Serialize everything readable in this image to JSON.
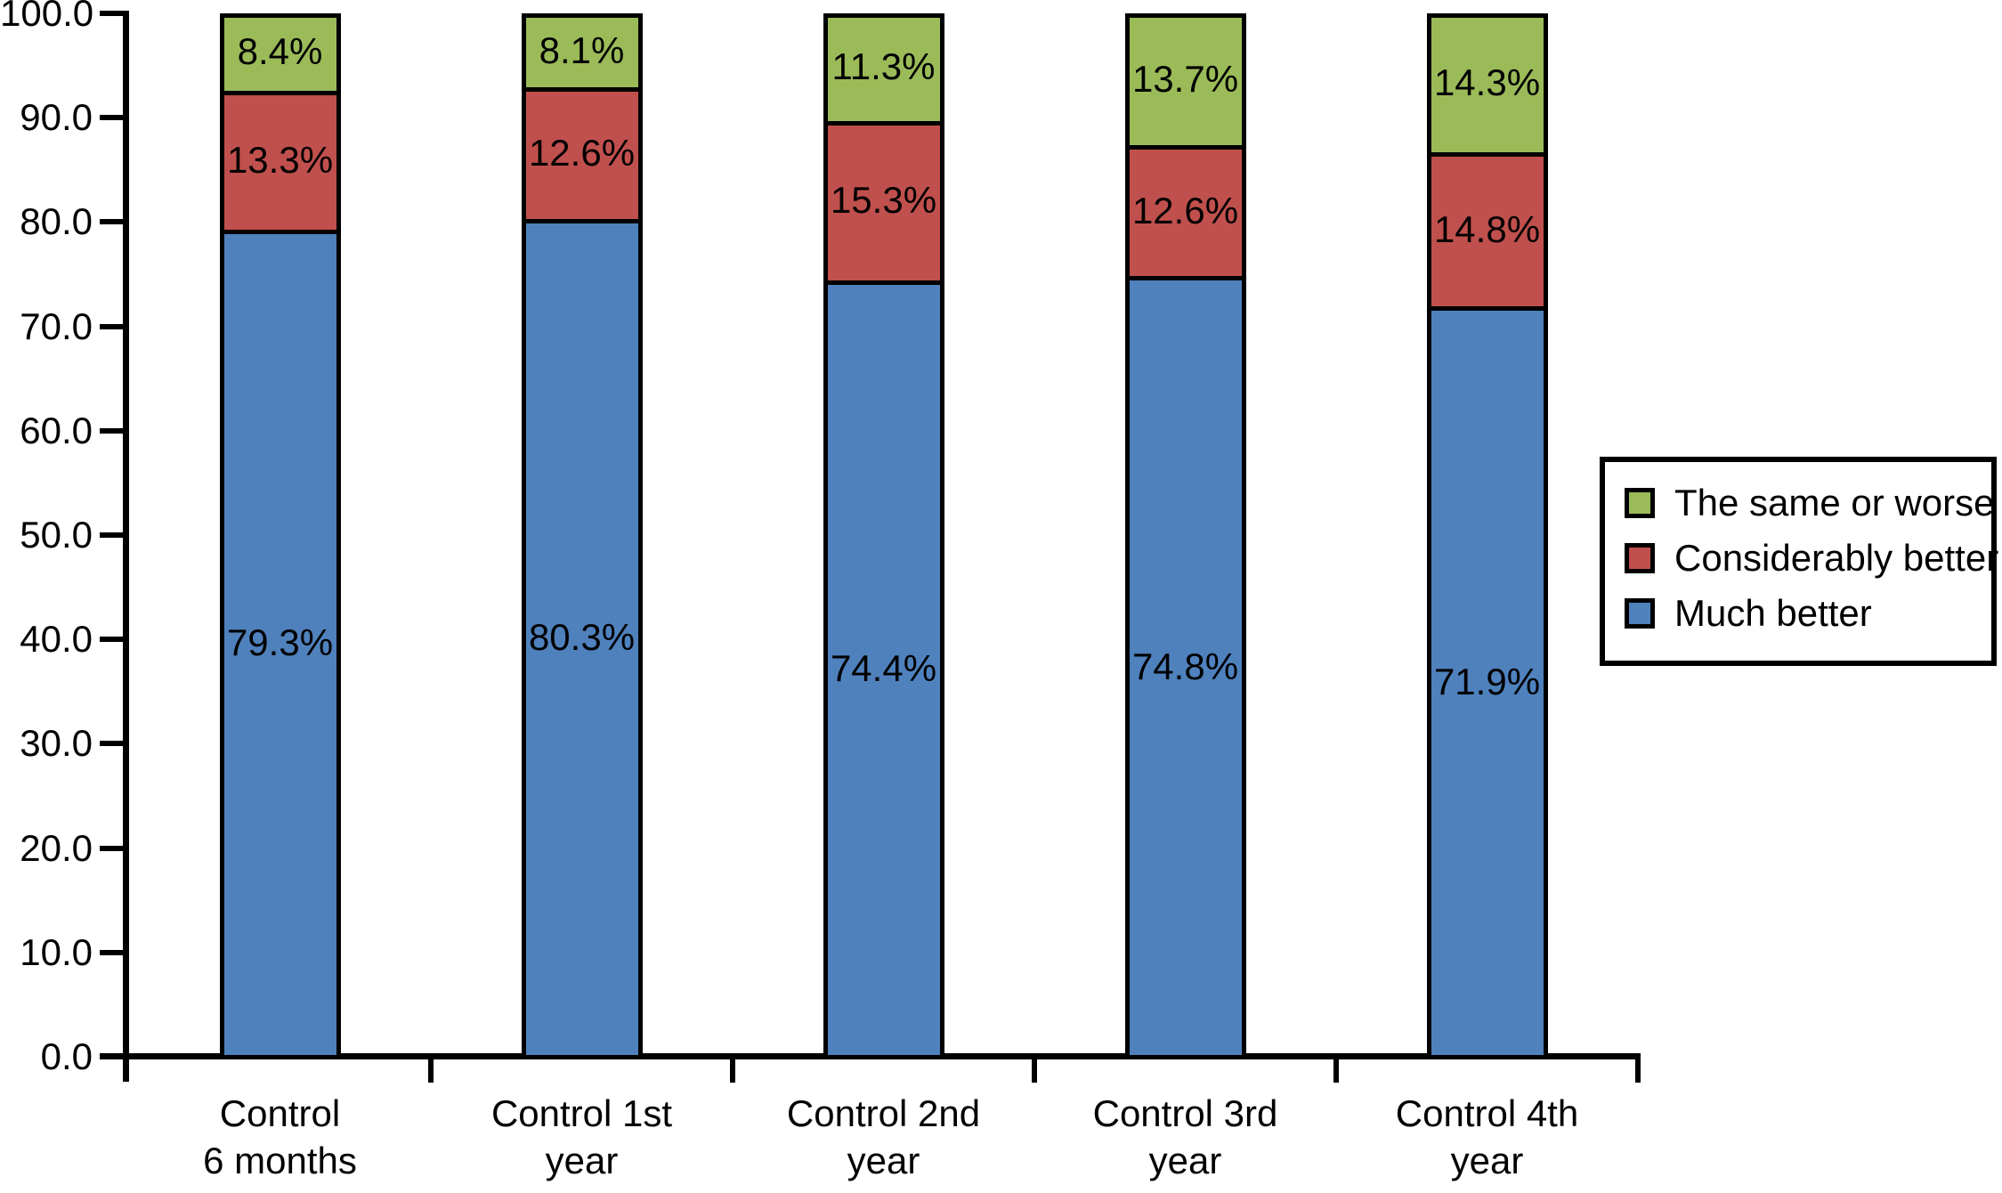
{
  "figure": {
    "background": "#ffffff"
  },
  "chart_data": {
    "type": "bar",
    "stacked": true,
    "stacked_100_percent": true,
    "title": "",
    "xlabel": "",
    "ylabel": "",
    "categories": [
      [
        "Control",
        "6 months"
      ],
      [
        "Control 1st",
        "year"
      ],
      [
        "Control 2nd",
        "year"
      ],
      [
        "Control 3rd",
        "year"
      ],
      [
        "Control 4th",
        "year"
      ]
    ],
    "series": [
      {
        "name": "Much better",
        "color": "#4F81BD",
        "values": [
          79.3,
          80.3,
          74.4,
          74.8,
          71.9
        ],
        "labels": [
          "79.3%",
          "80.3%",
          "74.4%",
          "74.8%",
          "71.9%"
        ]
      },
      {
        "name": "Considerably better",
        "color": "#C0504D",
        "values": [
          13.3,
          12.6,
          15.3,
          12.6,
          14.8
        ],
        "labels": [
          "13.3%",
          "12.6%",
          "15.3%",
          "12.6%",
          "14.8%"
        ]
      },
      {
        "name": "The same or worse",
        "color": "#9BBB59",
        "values": [
          8.4,
          8.1,
          11.3,
          13.7,
          14.3
        ],
        "labels": [
          "8.4%",
          "8.1%",
          "11.3%",
          "13.7%",
          "14.3%"
        ]
      }
    ],
    "ylim": [
      0,
      100
    ],
    "yticks": [
      0,
      10,
      20,
      30,
      40,
      50,
      60,
      70,
      80,
      90,
      100
    ],
    "ytick_labels": [
      "0.0",
      "10.0",
      "20.0",
      "30.0",
      "40.0",
      "50.0",
      "60.0",
      "70.0",
      "80.0",
      "90.0",
      "100.0"
    ],
    "grid": false,
    "bar_border_color": "#000000",
    "axis_color": "#000000",
    "legend": {
      "position": "right",
      "entries": [
        {
          "label": "The same or worse",
          "color": "#9BBB59"
        },
        {
          "label": "Considerably better",
          "color": "#C0504D"
        },
        {
          "label": "Much better",
          "color": "#4F81BD"
        }
      ]
    }
  }
}
